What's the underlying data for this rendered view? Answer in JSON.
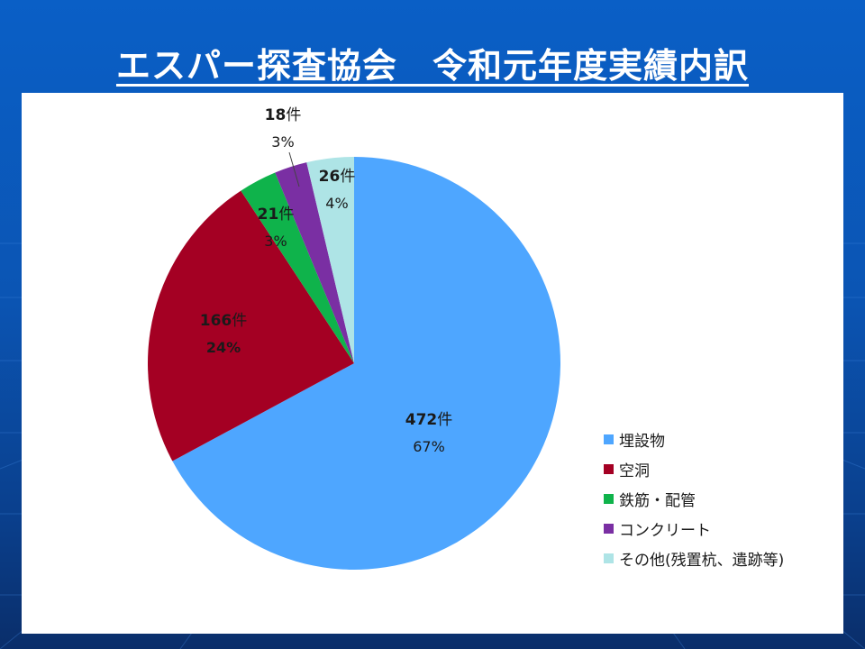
{
  "slide": {
    "title": "エスパー探査協会　令和元年度実績内訳",
    "background_color": "#0b55b4"
  },
  "chart_data": {
    "type": "pie",
    "title": "",
    "start_angle_deg": 0,
    "direction": "clockwise",
    "slices": [
      {
        "name": "埋設物",
        "value": 472,
        "count_label": "472",
        "unit": "件",
        "percent_label": "67%",
        "color": "#4ea6ff",
        "pct_bold": false
      },
      {
        "name": "空洞",
        "value": 166,
        "count_label": "166",
        "unit": "件",
        "percent_label": "24%",
        "color": "#a40023",
        "pct_bold": true
      },
      {
        "name": "鉄筋・配管",
        "value": 21,
        "count_label": "21",
        "unit": "件",
        "percent_label": "3%",
        "color": "#0fb34b",
        "pct_bold": false
      },
      {
        "name": "コンクリート",
        "value": 18,
        "count_label": "18",
        "unit": "件",
        "percent_label": "3%",
        "color": "#7a2fa3",
        "pct_bold": false
      },
      {
        "name": "その他(残置杭、遺跡等)",
        "value": 26,
        "count_label": "26",
        "unit": "件",
        "percent_label": "4%",
        "color": "#aee4e6",
        "pct_bold": false
      }
    ],
    "legend_position": "right"
  }
}
